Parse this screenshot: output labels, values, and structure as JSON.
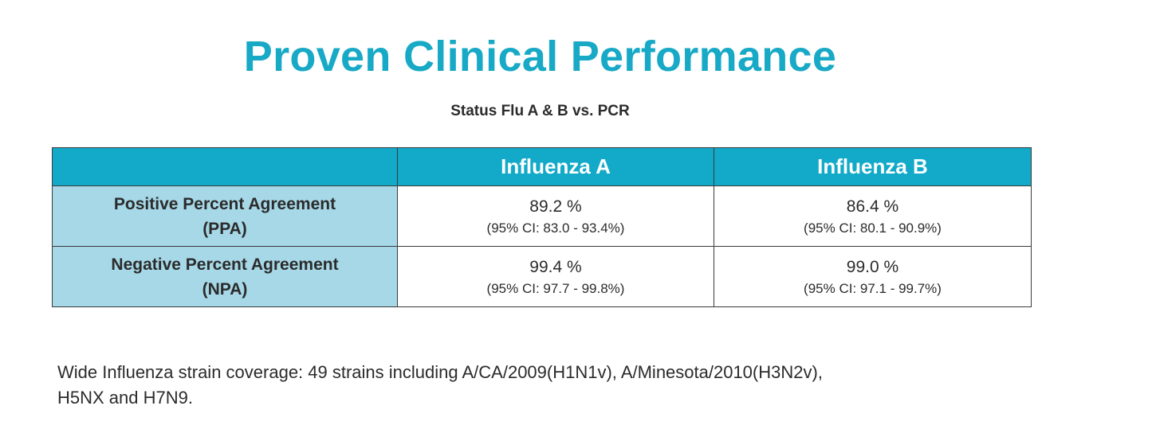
{
  "title": "Proven Clinical Performance",
  "subtitle": "Status Flu A & B vs. PCR",
  "table": {
    "corner": "",
    "columns": [
      "Influenza A",
      "Influenza B"
    ],
    "rows": [
      {
        "label_line1": "Positive Percent Agreement",
        "label_line2": "(PPA)",
        "cells": [
          {
            "value": "89.2 %",
            "ci": "(95% CI: 83.0 - 93.4%)"
          },
          {
            "value": "86.4 %",
            "ci": "(95% CI: 80.1 - 90.9%)"
          }
        ]
      },
      {
        "label_line1": "Negative Percent Agreement",
        "label_line2": "(NPA)",
        "cells": [
          {
            "value": "99.4 %",
            "ci": "(95% CI: 97.7 - 99.8%)"
          },
          {
            "value": "99.0 %",
            "ci": "(95% CI: 97.1 - 99.7%)"
          }
        ]
      }
    ]
  },
  "footnote_line1": "Wide Influenza strain coverage: 49 strains including A/CA/2009(H1N1v), A/Minesota/2010(H3N2v),",
  "footnote_line2": "H5NX and H7N9.",
  "colors": {
    "title": "#17a9c6",
    "header_bg": "#12aac8",
    "row_label_bg": "#a6d8e7",
    "text": "#2b2b2b"
  }
}
